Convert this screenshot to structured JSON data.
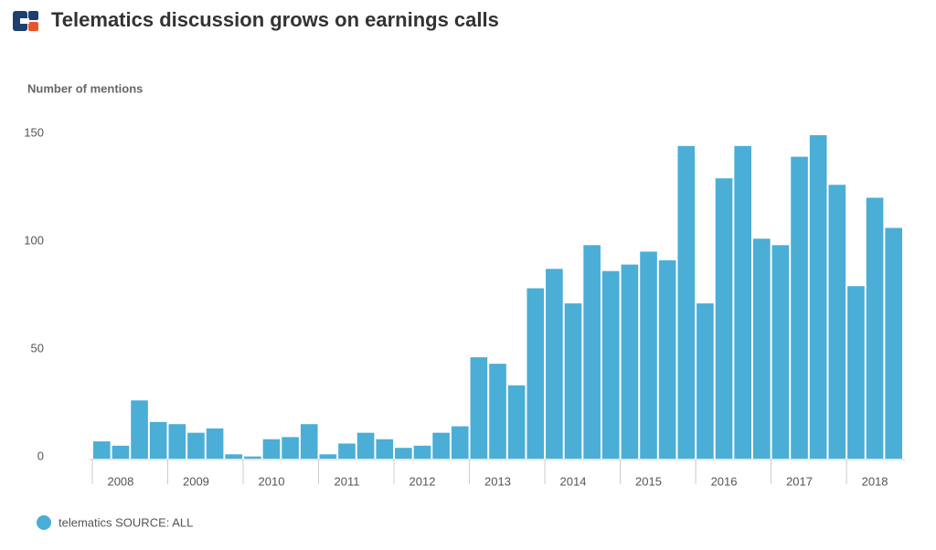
{
  "chart_data": {
    "type": "bar",
    "title": "Telematics discussion grows on earnings calls",
    "y_label": "Number of mentions",
    "categories": [
      null,
      "2008",
      null,
      null,
      null,
      "2009",
      null,
      null,
      null,
      "2010",
      null,
      null,
      null,
      "2011",
      null,
      null,
      null,
      "2012",
      null,
      null,
      null,
      "2013",
      null,
      null,
      null,
      "2014",
      null,
      null,
      null,
      "2015",
      null,
      null,
      null,
      "2016",
      null,
      null,
      null,
      "2017",
      null,
      null,
      null,
      "2018",
      null
    ],
    "series": [
      {
        "name": "telematics SOURCE: ALL",
        "color": "#4aaed6",
        "values": [
          8,
          6,
          27,
          17,
          16,
          12,
          14,
          2,
          1,
          9,
          10,
          16,
          2,
          7,
          12,
          9,
          5,
          6,
          12,
          15,
          47,
          44,
          34,
          79,
          88,
          72,
          99,
          87,
          90,
          96,
          92,
          145,
          72,
          130,
          145,
          102,
          99,
          140,
          150,
          127,
          80,
          121,
          107
        ]
      }
    ],
    "ylim": [
      0,
      150
    ],
    "yticks": [
      0,
      50,
      100,
      150
    ],
    "legend": "bottom-left"
  }
}
